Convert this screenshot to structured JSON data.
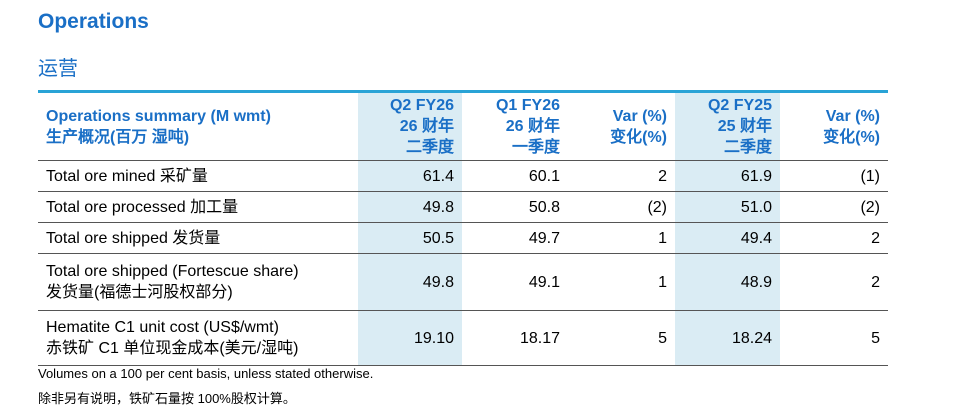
{
  "header": {
    "title": "Operations",
    "subtitle": "运营"
  },
  "table": {
    "columns": [
      [
        "Operations summary (M wmt)",
        "生产概况(百万 湿吨)"
      ],
      [
        "Q2 FY26",
        "26 财年",
        "二季度"
      ],
      [
        "Q1 FY26",
        "26 财年",
        "一季度"
      ],
      [
        "Var (%)",
        "变化(%)"
      ],
      [
        "Q2 FY25",
        "25 财年",
        "二季度"
      ],
      [
        "Var (%)",
        "变化(%)"
      ]
    ],
    "rows": [
      {
        "label": [
          "Total ore mined 采矿量"
        ],
        "cells": [
          "61.4",
          "60.1",
          "2",
          "61.9",
          "(1)"
        ]
      },
      {
        "label": [
          "Total ore processed 加工量"
        ],
        "cells": [
          "49.8",
          "50.8",
          "(2)",
          "51.0",
          "(2)"
        ]
      },
      {
        "label": [
          "Total ore shipped 发货量"
        ],
        "cells": [
          "50.5",
          "49.7",
          "1",
          "49.4",
          "2"
        ]
      },
      {
        "label": [
          "Total ore shipped (Fortescue share)",
          "发货量(福德士河股权部分)"
        ],
        "cells": [
          "49.8",
          "49.1",
          "1",
          "48.9",
          "2"
        ]
      },
      {
        "label": [
          "Hematite C1 unit cost (US$/wmt)",
          "赤铁矿 C1 单位现金成本(美元/湿吨)"
        ],
        "cells": [
          "19.10",
          "18.17",
          "5",
          "18.24",
          "5"
        ]
      }
    ]
  },
  "footnotes": [
    "Volumes on a 100 per cent basis, unless stated otherwise.",
    "除非另有说明，铁矿石量按 100%股权计算。"
  ]
}
